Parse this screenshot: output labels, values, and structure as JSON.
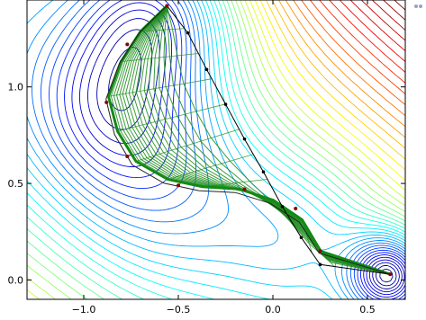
{
  "chart_data": {
    "type": "line",
    "title": "",
    "xlabel": "",
    "ylabel": "",
    "xlim": [
      -1.3,
      0.7
    ],
    "ylim": [
      -0.1,
      1.45
    ],
    "x_ticks": [
      {
        "value": -1.0,
        "label": "−1.0"
      },
      {
        "value": -0.5,
        "label": "−0.5"
      },
      {
        "value": 0.0,
        "label": "0.0"
      },
      {
        "value": 0.5,
        "label": "0.5"
      }
    ],
    "y_ticks": [
      {
        "value": 0.0,
        "label": "0.0"
      },
      {
        "value": 0.5,
        "label": "0.5"
      },
      {
        "value": 1.0,
        "label": "1.0"
      }
    ],
    "grid": false,
    "background": "contour map of a potential energy surface, colormap jet",
    "series": [
      {
        "name": "",
        "style": "initial straight-line path (black, with dots)",
        "color": "#000000",
        "points": [
          [
            -0.56,
            1.42
          ],
          [
            -0.45,
            1.28
          ],
          [
            -0.35,
            1.09
          ],
          [
            -0.25,
            0.91
          ],
          [
            -0.15,
            0.73
          ],
          [
            -0.05,
            0.56
          ],
          [
            0.05,
            0.38
          ],
          [
            0.15,
            0.22
          ],
          [
            0.25,
            0.08
          ],
          [
            0.62,
            0.03
          ]
        ]
      },
      {
        "name": "",
        "style": "converged minimum energy path (dark red, with dots)",
        "color": "#8b0000",
        "points": [
          [
            -0.56,
            1.42
          ],
          [
            -0.77,
            1.22
          ],
          [
            -0.88,
            0.92
          ],
          [
            -0.77,
            0.64
          ],
          [
            -0.5,
            0.49
          ],
          [
            -0.15,
            0.47
          ],
          [
            0.12,
            0.37
          ],
          [
            0.25,
            0.15
          ],
          [
            0.62,
            0.03
          ]
        ]
      },
      {
        "name": "",
        "style": "intermediate optimisation iterates (green)",
        "color": "#1a8c1a",
        "count": 18
      }
    ],
    "contour_colors": [
      "#00008f",
      "#0000ff",
      "#0080ff",
      "#00ffff",
      "#80ff80",
      "#ffff00",
      "#ff8000",
      "#ff0000",
      "#800000"
    ]
  }
}
